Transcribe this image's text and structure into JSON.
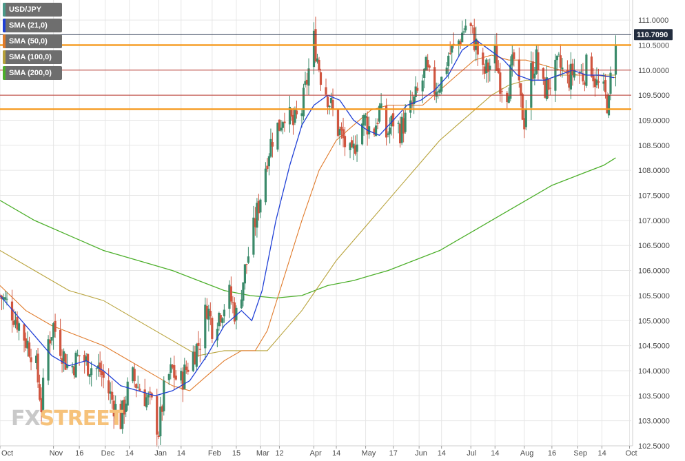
{
  "legend": [
    {
      "label": "USD/JPY",
      "color": "#4a9a8a"
    },
    {
      "label": "SMA (21,0)",
      "color": "#1f3fd6"
    },
    {
      "label": "SMA (50,0)",
      "color": "#e07a2a"
    },
    {
      "label": "SMA (100,0)",
      "color": "#b8a23a"
    },
    {
      "label": "SMA (200,0)",
      "color": "#4caf2a"
    }
  ],
  "logo": {
    "fx": "FX",
    "street": "STREET"
  },
  "last_price": "110.7090",
  "colors": {
    "up": "#3a8a6a",
    "down": "#d0553f",
    "sma21": "#1f3fd6",
    "sma50": "#e07a2a",
    "sma100": "#b8a23a",
    "sma200": "#4caf2a",
    "grid": "#e6e6e6",
    "level_orange": "#f59a1e",
    "level_red": "#b8322a",
    "level_navy": "#2e3a52"
  },
  "chart_data": {
    "type": "candlestick",
    "symbol": "USD/JPY",
    "y_range": [
      102.5,
      111.4
    ],
    "y_ticks": [
      "111.0000",
      "110.5000",
      "110.0000",
      "109.5000",
      "109.0000",
      "108.5000",
      "108.0000",
      "107.5000",
      "107.0000",
      "106.5000",
      "106.0000",
      "105.5000",
      "105.0000",
      "104.5000",
      "104.0000",
      "103.5000",
      "103.0000",
      "102.5000"
    ],
    "x_labels": [
      "Oct",
      "Nov",
      "16",
      "Dec",
      "14",
      "Jan",
      "14",
      "Feb",
      "15",
      "Mar",
      "12",
      "Apr",
      "14",
      "May",
      "17",
      "Jun",
      "14",
      "Jul",
      "14",
      "Aug",
      "16",
      "Sep",
      "14",
      "Oct"
    ],
    "x_label_days": [
      0,
      31,
      46,
      61,
      75,
      92,
      105,
      123,
      137,
      151,
      162,
      182,
      195,
      212,
      228,
      243,
      256,
      273,
      287,
      304,
      320,
      335,
      349,
      365
    ],
    "horizontal_levels": [
      {
        "value": 110.709,
        "color": "navy"
      },
      {
        "value": 110.5,
        "color": "orange"
      },
      {
        "value": 110.0,
        "color": "red"
      },
      {
        "value": 109.5,
        "color": "red"
      },
      {
        "value": 109.22,
        "color": "orange"
      }
    ],
    "close_path": [
      [
        0,
        105.5
      ],
      [
        5,
        105.3
      ],
      [
        10,
        105.0
      ],
      [
        15,
        104.6
      ],
      [
        20,
        104.3
      ],
      [
        24,
        103.3
      ],
      [
        28,
        104.6
      ],
      [
        31,
        104.9
      ],
      [
        35,
        104.5
      ],
      [
        40,
        104.0
      ],
      [
        46,
        104.3
      ],
      [
        52,
        104.1
      ],
      [
        58,
        104.0
      ],
      [
        64,
        103.5
      ],
      [
        70,
        103.0
      ],
      [
        76,
        103.9
      ],
      [
        82,
        103.6
      ],
      [
        88,
        103.3
      ],
      [
        92,
        102.8
      ],
      [
        96,
        103.8
      ],
      [
        100,
        104.0
      ],
      [
        104,
        103.7
      ],
      [
        110,
        104.2
      ],
      [
        116,
        104.6
      ],
      [
        120,
        105.3
      ],
      [
        123,
        104.9
      ],
      [
        128,
        105.2
      ],
      [
        133,
        105.5
      ],
      [
        137,
        105.1
      ],
      [
        142,
        106.0
      ],
      [
        147,
        106.8
      ],
      [
        151,
        107.5
      ],
      [
        155,
        108.3
      ],
      [
        159,
        108.8
      ],
      [
        162,
        108.9
      ],
      [
        165,
        109.2
      ],
      [
        170,
        108.9
      ],
      [
        175,
        109.2
      ],
      [
        179,
        110.0
      ],
      [
        182,
        110.6
      ],
      [
        186,
        109.9
      ],
      [
        190,
        109.5
      ],
      [
        195,
        108.9
      ],
      [
        199,
        108.6
      ],
      [
        204,
        108.2
      ],
      [
        208,
        108.9
      ],
      [
        212,
        109.0
      ],
      [
        216,
        108.7
      ],
      [
        220,
        109.2
      ],
      [
        224,
        108.7
      ],
      [
        228,
        109.0
      ],
      [
        232,
        108.8
      ],
      [
        238,
        109.2
      ],
      [
        243,
        109.6
      ],
      [
        247,
        110.0
      ],
      [
        251,
        109.6
      ],
      [
        256,
        109.8
      ],
      [
        260,
        110.3
      ],
      [
        265,
        110.5
      ],
      [
        270,
        110.9
      ],
      [
        273,
        110.8
      ],
      [
        276,
        110.5
      ],
      [
        280,
        109.9
      ],
      [
        284,
        110.1
      ],
      [
        287,
        110.3
      ],
      [
        290,
        109.8
      ],
      [
        294,
        109.6
      ],
      [
        298,
        110.2
      ],
      [
        302,
        109.3
      ],
      [
        304,
        109.0
      ],
      [
        307,
        109.9
      ],
      [
        311,
        110.2
      ],
      [
        315,
        109.6
      ],
      [
        320,
        109.8
      ],
      [
        324,
        110.1
      ],
      [
        329,
        109.8
      ],
      [
        333,
        110.0
      ],
      [
        338,
        109.9
      ],
      [
        342,
        110.2
      ],
      [
        346,
        109.7
      ],
      [
        349,
        109.6
      ],
      [
        353,
        109.3
      ],
      [
        355,
        110.3
      ],
      [
        357,
        110.7
      ]
    ],
    "sma21": [
      [
        0,
        105.5
      ],
      [
        10,
        105.1
      ],
      [
        20,
        104.7
      ],
      [
        30,
        104.3
      ],
      [
        40,
        104.1
      ],
      [
        50,
        104.2
      ],
      [
        60,
        104.0
      ],
      [
        70,
        103.7
      ],
      [
        80,
        103.6
      ],
      [
        90,
        103.5
      ],
      [
        100,
        103.6
      ],
      [
        110,
        103.8
      ],
      [
        120,
        104.3
      ],
      [
        130,
        104.9
      ],
      [
        140,
        105.2
      ],
      [
        146,
        105.0
      ],
      [
        152,
        105.6
      ],
      [
        160,
        107.0
      ],
      [
        168,
        108.1
      ],
      [
        175,
        108.9
      ],
      [
        182,
        109.3
      ],
      [
        190,
        109.5
      ],
      [
        197,
        109.4
      ],
      [
        205,
        109.0
      ],
      [
        213,
        108.8
      ],
      [
        220,
        108.7
      ],
      [
        228,
        109.0
      ],
      [
        236,
        109.3
      ],
      [
        244,
        109.4
      ],
      [
        252,
        109.6
      ],
      [
        260,
        109.9
      ],
      [
        268,
        110.4
      ],
      [
        276,
        110.6
      ],
      [
        284,
        110.4
      ],
      [
        292,
        110.2
      ],
      [
        300,
        109.9
      ],
      [
        308,
        109.8
      ],
      [
        316,
        109.8
      ],
      [
        324,
        109.9
      ],
      [
        332,
        110.0
      ],
      [
        340,
        109.9
      ],
      [
        348,
        109.9
      ],
      [
        356,
        109.85
      ]
    ],
    "sma50": [
      [
        0,
        105.7
      ],
      [
        15,
        105.2
      ],
      [
        30,
        104.9
      ],
      [
        45,
        104.7
      ],
      [
        60,
        104.5
      ],
      [
        75,
        104.2
      ],
      [
        90,
        103.9
      ],
      [
        100,
        103.7
      ],
      [
        110,
        103.6
      ],
      [
        120,
        103.9
      ],
      [
        130,
        104.2
      ],
      [
        140,
        104.4
      ],
      [
        148,
        104.4
      ],
      [
        155,
        104.8
      ],
      [
        165,
        105.9
      ],
      [
        175,
        107.0
      ],
      [
        185,
        108.0
      ],
      [
        195,
        108.6
      ],
      [
        205,
        108.9
      ],
      [
        215,
        109.2
      ],
      [
        225,
        109.3
      ],
      [
        235,
        109.3
      ],
      [
        245,
        109.3
      ],
      [
        255,
        109.6
      ],
      [
        265,
        109.9
      ],
      [
        275,
        110.2
      ],
      [
        285,
        110.3
      ],
      [
        295,
        110.2
      ],
      [
        305,
        110.2
      ],
      [
        315,
        110.1
      ],
      [
        325,
        110.0
      ],
      [
        335,
        109.9
      ],
      [
        345,
        109.9
      ],
      [
        357,
        109.85
      ]
    ],
    "sma100": [
      [
        0,
        106.4
      ],
      [
        20,
        106.0
      ],
      [
        40,
        105.6
      ],
      [
        60,
        105.4
      ],
      [
        80,
        105.0
      ],
      [
        100,
        104.6
      ],
      [
        115,
        104.3
      ],
      [
        130,
        104.4
      ],
      [
        145,
        104.4
      ],
      [
        155,
        104.4
      ],
      [
        165,
        104.8
      ],
      [
        175,
        105.2
      ],
      [
        185,
        105.7
      ],
      [
        195,
        106.2
      ],
      [
        205,
        106.6
      ],
      [
        215,
        107.0
      ],
      [
        225,
        107.4
      ],
      [
        235,
        107.8
      ],
      [
        245,
        108.2
      ],
      [
        255,
        108.6
      ],
      [
        265,
        108.9
      ],
      [
        275,
        109.2
      ],
      [
        285,
        109.5
      ],
      [
        295,
        109.7
      ],
      [
        305,
        109.8
      ],
      [
        315,
        109.8
      ],
      [
        325,
        109.9
      ],
      [
        335,
        109.9
      ],
      [
        345,
        109.9
      ],
      [
        357,
        109.9
      ]
    ],
    "sma200": [
      [
        0,
        107.4
      ],
      [
        20,
        107.0
      ],
      [
        40,
        106.7
      ],
      [
        60,
        106.4
      ],
      [
        80,
        106.2
      ],
      [
        100,
        106.0
      ],
      [
        115,
        105.8
      ],
      [
        130,
        105.6
      ],
      [
        145,
        105.5
      ],
      [
        160,
        105.45
      ],
      [
        175,
        105.5
      ],
      [
        190,
        105.7
      ],
      [
        205,
        105.8
      ],
      [
        215,
        105.9
      ],
      [
        225,
        106.0
      ],
      [
        240,
        106.2
      ],
      [
        255,
        106.4
      ],
      [
        265,
        106.6
      ],
      [
        275,
        106.8
      ],
      [
        290,
        107.1
      ],
      [
        305,
        107.4
      ],
      [
        320,
        107.7
      ],
      [
        335,
        107.9
      ],
      [
        350,
        108.1
      ],
      [
        357,
        108.25
      ]
    ]
  }
}
